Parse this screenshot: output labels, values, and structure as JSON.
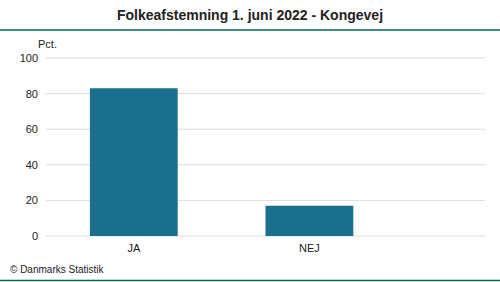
{
  "chart_data": {
    "type": "bar",
    "title": "Folkeafstemning 1. juni 2022 - Kongevej",
    "ylabel": "Pct.",
    "categories": [
      "JA",
      "NEJ"
    ],
    "values": [
      83,
      17
    ],
    "color": "#1a6e8e",
    "ylim": [
      0,
      100
    ],
    "yticks": [
      0,
      20,
      40,
      60,
      80,
      100
    ],
    "grid": true,
    "annotations": [
      "© Danmarks Statistik"
    ]
  }
}
